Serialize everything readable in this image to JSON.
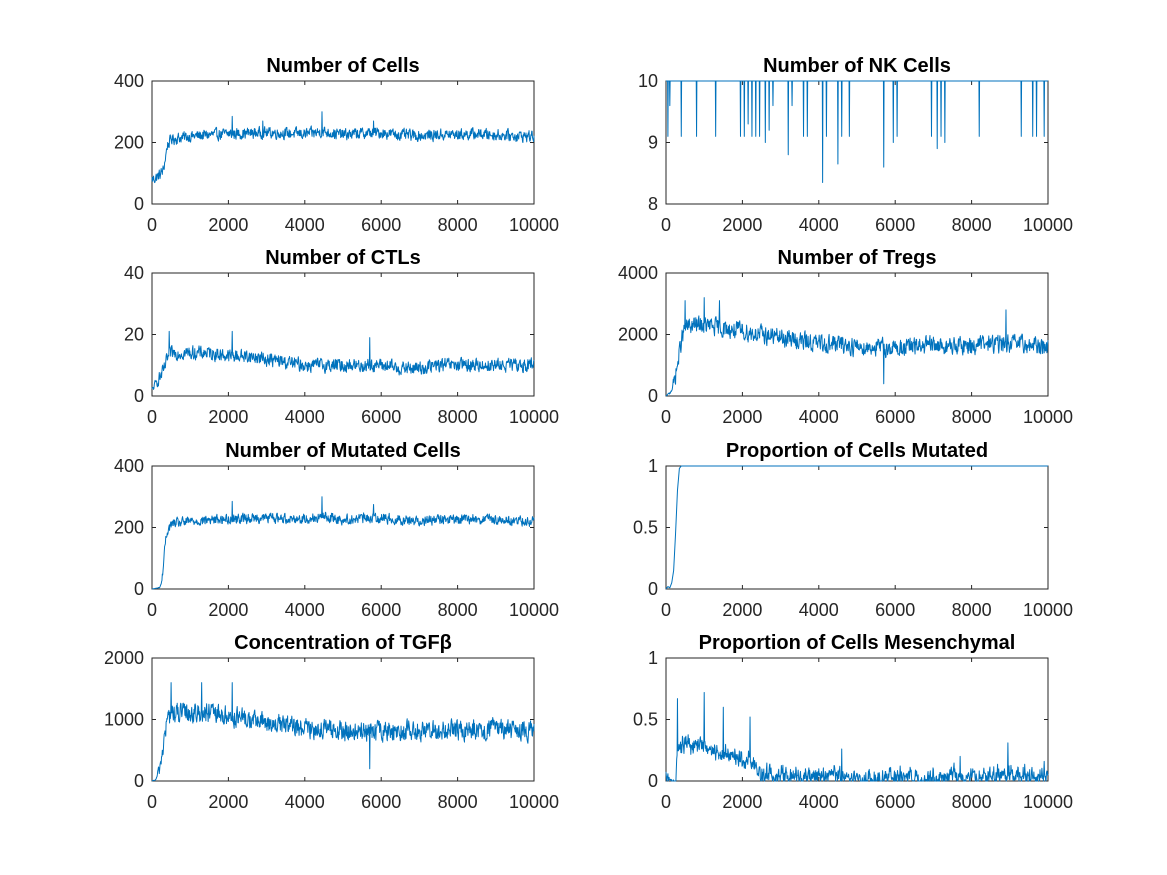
{
  "figure": {
    "line_color": "#0072BD",
    "background": "#ffffff"
  },
  "chart_data": [
    {
      "type": "line",
      "title": "Number of Cells",
      "xlim": [
        0,
        10000
      ],
      "ylim": [
        0,
        400
      ],
      "xticks": [
        0,
        2000,
        4000,
        6000,
        8000,
        10000
      ],
      "yticks": [
        0,
        200,
        400
      ],
      "xtick_labels": [
        "0",
        "2000",
        "4000",
        "6000",
        "8000",
        "10000"
      ],
      "ytick_labels": [
        "0",
        "200",
        "400"
      ],
      "series": [
        {
          "x": [
            0,
            100,
            200,
            300,
            400,
            500,
            700,
            1000,
            1500,
            2000,
            2500,
            3000,
            3500,
            4000,
            4500,
            5000,
            5500,
            6000,
            6500,
            7000,
            7500,
            8000,
            8500,
            9000,
            9500,
            10000
          ],
          "y": [
            80,
            85,
            95,
            110,
            190,
            210,
            215,
            220,
            225,
            228,
            230,
            232,
            230,
            228,
            235,
            225,
            230,
            232,
            225,
            222,
            225,
            226,
            228,
            225,
            222,
            220
          ],
          "noise": 25,
          "spikes": [
            [
              2100,
              285
            ],
            [
              4450,
              300
            ],
            [
              5800,
              270
            ],
            [
              2900,
              270
            ]
          ]
        }
      ]
    },
    {
      "type": "line",
      "title": "Number of NK Cells",
      "xlim": [
        0,
        10000
      ],
      "ylim": [
        8,
        10
      ],
      "xticks": [
        0,
        2000,
        4000,
        6000,
        8000,
        10000
      ],
      "yticks": [
        8,
        9,
        10
      ],
      "xtick_labels": [
        "0",
        "2000",
        "4000",
        "6000",
        "8000",
        "10000"
      ],
      "ytick_labels": [
        "8",
        "9",
        "10"
      ],
      "baseline": 10,
      "dips": [
        [
          50,
          9.1
        ],
        [
          100,
          9.6
        ],
        [
          400,
          9.1
        ],
        [
          800,
          9.1
        ],
        [
          1300,
          9.1
        ],
        [
          1950,
          9.1
        ],
        [
          2050,
          9.1
        ],
        [
          2150,
          9.3
        ],
        [
          2250,
          9.1
        ],
        [
          2350,
          9.1
        ],
        [
          2450,
          9.1
        ],
        [
          2600,
          9.0
        ],
        [
          2700,
          9.2
        ],
        [
          2800,
          9.6
        ],
        [
          3200,
          8.8
        ],
        [
          3300,
          9.6
        ],
        [
          3600,
          9.1
        ],
        [
          3700,
          9.1
        ],
        [
          4100,
          8.35
        ],
        [
          4200,
          9.1
        ],
        [
          4500,
          8.65
        ],
        [
          4600,
          9.1
        ],
        [
          4800,
          9.1
        ],
        [
          5700,
          8.6
        ],
        [
          5950,
          9.0
        ],
        [
          6050,
          9.1
        ],
        [
          6950,
          9.1
        ],
        [
          7100,
          8.9
        ],
        [
          7200,
          9.1
        ],
        [
          7300,
          9.0
        ],
        [
          8200,
          9.1
        ],
        [
          9300,
          9.1
        ],
        [
          9600,
          9.1
        ],
        [
          9700,
          9.1
        ],
        [
          9900,
          9.1
        ]
      ]
    },
    {
      "type": "line",
      "title": "Number of CTLs",
      "xlim": [
        0,
        10000
      ],
      "ylim": [
        0,
        40
      ],
      "xticks": [
        0,
        2000,
        4000,
        6000,
        8000,
        10000
      ],
      "yticks": [
        0,
        20,
        40
      ],
      "xtick_labels": [
        "0",
        "2000",
        "4000",
        "6000",
        "8000",
        "10000"
      ],
      "ytick_labels": [
        "0",
        "20",
        "40"
      ],
      "series": [
        {
          "x": [
            0,
            100,
            200,
            300,
            400,
            500,
            700,
            1000,
            1500,
            2000,
            2500,
            3000,
            3500,
            4000,
            4500,
            5000,
            5500,
            6000,
            6500,
            7000,
            7500,
            8000,
            8500,
            9000,
            9500,
            10000
          ],
          "y": [
            2,
            4,
            6,
            8,
            12,
            14,
            14,
            14,
            14,
            13,
            13,
            12,
            11,
            10,
            10,
            10,
            10,
            10,
            9,
            9,
            10,
            10,
            10,
            10,
            10,
            10
          ],
          "noise": 3,
          "spikes": [
            [
              450,
              21
            ],
            [
              2100,
              21
            ],
            [
              5700,
              19
            ]
          ]
        }
      ]
    },
    {
      "type": "line",
      "title": "Number of Tregs",
      "xlim": [
        0,
        10000
      ],
      "ylim": [
        0,
        4000
      ],
      "xticks": [
        0,
        2000,
        4000,
        6000,
        8000,
        10000
      ],
      "yticks": [
        0,
        2000,
        4000
      ],
      "xtick_labels": [
        "0",
        "2000",
        "4000",
        "6000",
        "8000",
        "10000"
      ],
      "ytick_labels": [
        "0",
        "2000",
        "4000"
      ],
      "series": [
        {
          "x": [
            0,
            100,
            200,
            300,
            400,
            500,
            700,
            1000,
            1500,
            2000,
            2500,
            3000,
            3500,
            4000,
            4500,
            5000,
            5500,
            6000,
            6500,
            7000,
            7500,
            8000,
            8500,
            9000,
            9500,
            10000
          ],
          "y": [
            0,
            100,
            400,
            1000,
            1800,
            2200,
            2300,
            2300,
            2200,
            2100,
            2000,
            1900,
            1800,
            1700,
            1700,
            1600,
            1600,
            1550,
            1600,
            1650,
            1600,
            1650,
            1700,
            1700,
            1650,
            1600
          ],
          "noise": 400,
          "spikes": [
            [
              500,
              3100
            ],
            [
              1000,
              3200
            ],
            [
              1400,
              3100
            ],
            [
              5700,
              400
            ],
            [
              8900,
              2800
            ]
          ]
        }
      ]
    },
    {
      "type": "line",
      "title": "Number of Mutated Cells",
      "xlim": [
        0,
        10000
      ],
      "ylim": [
        0,
        400
      ],
      "xticks": [
        0,
        2000,
        4000,
        6000,
        8000,
        10000
      ],
      "yticks": [
        0,
        200,
        400
      ],
      "xtick_labels": [
        "0",
        "2000",
        "4000",
        "6000",
        "8000",
        "10000"
      ],
      "ytick_labels": [
        "0",
        "200",
        "400"
      ],
      "series": [
        {
          "x": [
            0,
            100,
            200,
            250,
            300,
            350,
            400,
            500,
            700,
            1000,
            1500,
            2000,
            2500,
            3000,
            3500,
            4000,
            4500,
            5000,
            5500,
            6000,
            6500,
            7000,
            7500,
            8000,
            8500,
            9000,
            9500,
            10000
          ],
          "y": [
            0,
            2,
            5,
            20,
            80,
            150,
            190,
            210,
            215,
            220,
            225,
            228,
            230,
            232,
            230,
            228,
            235,
            225,
            230,
            232,
            225,
            222,
            225,
            226,
            228,
            225,
            222,
            220
          ],
          "noise": 22,
          "spikes": [
            [
              2100,
              285
            ],
            [
              4450,
              300
            ],
            [
              5800,
              275
            ]
          ]
        }
      ]
    },
    {
      "type": "line",
      "title": "Proportion of Cells Mutated",
      "xlim": [
        0,
        10000
      ],
      "ylim": [
        0,
        1
      ],
      "xticks": [
        0,
        2000,
        4000,
        6000,
        8000,
        10000
      ],
      "yticks": [
        0,
        0.5,
        1
      ],
      "xtick_labels": [
        "0",
        "2000",
        "4000",
        "6000",
        "8000",
        "10000"
      ],
      "ytick_labels": [
        "0",
        "0.5",
        "1"
      ],
      "series": [
        {
          "x": [
            0,
            50,
            100,
            150,
            200,
            250,
            300,
            350,
            400,
            10000
          ],
          "y": [
            0,
            0.02,
            0.01,
            0.05,
            0.15,
            0.45,
            0.8,
            0.98,
            1.0,
            1.0
          ],
          "noise": 0
        }
      ]
    },
    {
      "type": "line",
      "title": "Concentration of TGFβ",
      "xlim": [
        0,
        10000
      ],
      "ylim": [
        0,
        2000
      ],
      "xticks": [
        0,
        2000,
        4000,
        6000,
        8000,
        10000
      ],
      "yticks": [
        0,
        1000,
        2000
      ],
      "xtick_labels": [
        "0",
        "2000",
        "4000",
        "6000",
        "8000",
        "10000"
      ],
      "ytick_labels": [
        "0",
        "1000",
        "2000"
      ],
      "series": [
        {
          "x": [
            0,
            100,
            200,
            300,
            400,
            500,
            700,
            1000,
            1500,
            2000,
            2500,
            3000,
            3500,
            4000,
            4500,
            5000,
            5500,
            6000,
            6500,
            7000,
            7500,
            8000,
            8500,
            9000,
            9500,
            10000
          ],
          "y": [
            0,
            20,
            200,
            600,
            1000,
            1100,
            1100,
            1100,
            1100,
            1050,
            1000,
            950,
            900,
            850,
            850,
            800,
            800,
            800,
            820,
            830,
            800,
            820,
            850,
            850,
            820,
            800
          ],
          "noise": 220,
          "spikes": [
            [
              500,
              1600
            ],
            [
              1300,
              1600
            ],
            [
              2100,
              1600
            ],
            [
              5700,
              200
            ]
          ]
        }
      ]
    },
    {
      "type": "line",
      "title": "Proportion of Cells Mesenchymal",
      "xlim": [
        0,
        10000
      ],
      "ylim": [
        0,
        1
      ],
      "xticks": [
        0,
        2000,
        4000,
        6000,
        8000,
        10000
      ],
      "yticks": [
        0,
        0.5,
        1
      ],
      "xtick_labels": [
        "0",
        "2000",
        "4000",
        "6000",
        "8000",
        "10000"
      ],
      "ytick_labels": [
        "0",
        "0.5",
        "1"
      ],
      "series": [
        {
          "x": [
            0,
            250,
            300,
            500,
            1000,
            1500,
            2000,
            2300,
            2500,
            3000,
            3500,
            4000,
            4500,
            5000,
            5500,
            6000,
            6500,
            7000,
            7500,
            8000,
            8500,
            9000,
            9500,
            10000
          ],
          "y": [
            0,
            0,
            0.25,
            0.3,
            0.28,
            0.22,
            0.18,
            0.15,
            0.06,
            0.04,
            0.03,
            0.03,
            0.05,
            0.03,
            0.02,
            0.02,
            0.03,
            0.02,
            0.03,
            0.03,
            0.03,
            0.05,
            0.04,
            0.04
          ],
          "noise": 0.1,
          "floor": 0,
          "spikes": [
            [
              300,
              0.67
            ],
            [
              1000,
              0.72
            ],
            [
              1500,
              0.6
            ],
            [
              2200,
              0.52
            ],
            [
              4600,
              0.26
            ],
            [
              7700,
              0.2
            ],
            [
              8950,
              0.31
            ],
            [
              9900,
              0.16
            ]
          ]
        }
      ]
    }
  ]
}
